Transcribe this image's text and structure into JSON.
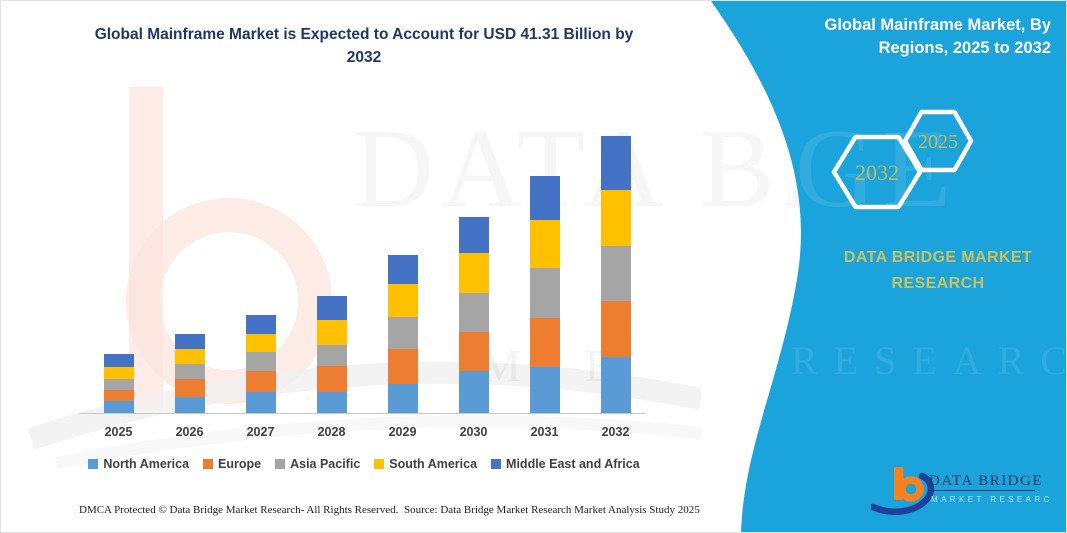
{
  "title_line1": "Global Mainframe Market is Expected to Account for USD 41.31 Billion by",
  "title_line2": "2032",
  "right_panel": {
    "background_color": "#1BA3DB",
    "header_line1": "Global Mainframe Market, By",
    "header_line2": "Regions, 2025 to 2032",
    "hexagon_back_label": "2032",
    "hexagon_front_label": "2025",
    "brand_line1": "DATA BRIDGE MARKET",
    "brand_line2": "RESEARCH",
    "logo_name": "DATA BRIDGE",
    "logo_subtext": "MARKET RESEARCH"
  },
  "watermark": {
    "row1_left": "DATA BRI",
    "row1_right": "DGE",
    "row2_left": "A M E",
    "row2_right": "RESEARCH"
  },
  "footer": {
    "left": "DMCA Protected © Data Bridge Market Research-  All Rights Reserved.",
    "source": "Source: Data Bridge Market Research  Market Analysis Study 2025"
  },
  "chart_data": {
    "type": "bar",
    "stacked": true,
    "unit": "USD Billion",
    "title": "Global Mainframe Market is Expected to Account for USD 41.31 Billion by 2032",
    "xlabel": "",
    "ylabel": "",
    "grid": false,
    "legend_position": "bottom",
    "ylim": [
      0,
      41.31
    ],
    "categories": [
      "2025",
      "2026",
      "2027",
      "2028",
      "2029",
      "2030",
      "2031",
      "2032"
    ],
    "series": [
      {
        "name": "North America",
        "color": "#5B9BD5",
        "values": [
          1.8,
          2.4,
          3.1,
          3.2,
          4.4,
          6.3,
          6.9,
          8.3
        ]
      },
      {
        "name": "Europe",
        "color": "#ED7D31",
        "values": [
          1.6,
          2.7,
          3.1,
          3.8,
          5.1,
          5.8,
          7.3,
          8.4
        ]
      },
      {
        "name": "Asia Pacific",
        "color": "#A5A5A5",
        "values": [
          1.7,
          2.2,
          2.9,
          3.2,
          4.8,
          5.8,
          7.4,
          8.2
        ]
      },
      {
        "name": "South America",
        "color": "#FFC000",
        "values": [
          1.8,
          2.2,
          2.7,
          3.7,
          4.9,
          6.0,
          7.2,
          8.3
        ]
      },
      {
        "name": "Middle East and Africa",
        "color": "#4472C4",
        "values": [
          1.9,
          2.2,
          2.8,
          3.5,
          4.4,
          5.3,
          6.5,
          8.1
        ]
      }
    ],
    "totals_note": "2032 total = 41.31 USD Billion (per title)"
  }
}
